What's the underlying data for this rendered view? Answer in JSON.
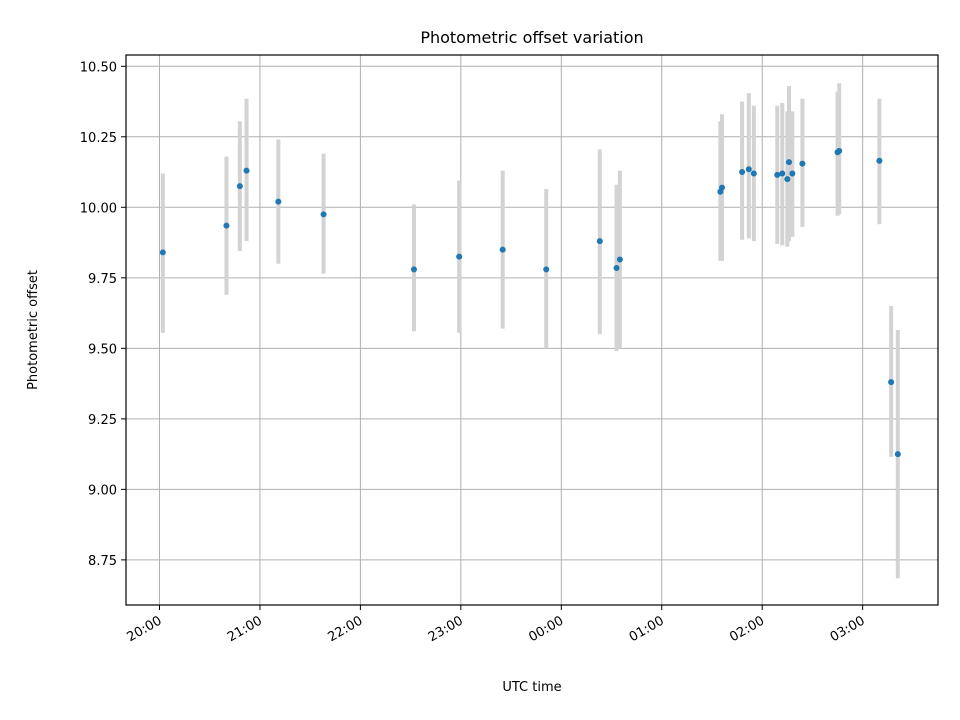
{
  "chart_data": {
    "type": "scatter",
    "title": "Photometric offset variation",
    "xlabel": "UTC time",
    "ylabel": "Photometric offset",
    "x_unit": "UTC time (HH:MM)",
    "x_start_date": "day 1 20:00",
    "xlim": [
      "19:40",
      "03:45"
    ],
    "ylim": [
      8.59,
      10.54
    ],
    "grid": true,
    "x_ticks": [
      "20:00",
      "21:00",
      "22:00",
      "23:00",
      "00:00",
      "01:00",
      "02:00",
      "03:00"
    ],
    "y_ticks": [
      "8.75",
      "9.00",
      "9.25",
      "9.50",
      "9.75",
      "10.00",
      "10.25",
      "10.50"
    ],
    "y_tick_values": [
      8.75,
      9.0,
      9.25,
      9.5,
      9.75,
      10.0,
      10.25,
      10.5
    ],
    "colors": {
      "point": "#1f77b4",
      "errorbar": "#d3d3d3",
      "grid": "#b0b0b0"
    },
    "points": [
      {
        "x": "20:02",
        "y": 9.84,
        "lo": 9.555,
        "hi": 10.12
      },
      {
        "x": "20:40",
        "y": 9.935,
        "lo": 9.69,
        "hi": 10.18
      },
      {
        "x": "20:48",
        "y": 10.075,
        "lo": 9.845,
        "hi": 10.305
      },
      {
        "x": "20:52",
        "y": 10.13,
        "lo": 9.88,
        "hi": 10.385
      },
      {
        "x": "21:11",
        "y": 10.02,
        "lo": 9.8,
        "hi": 10.24
      },
      {
        "x": "21:38",
        "y": 9.975,
        "lo": 9.765,
        "hi": 10.19
      },
      {
        "x": "22:32",
        "y": 9.78,
        "lo": 9.56,
        "hi": 10.01
      },
      {
        "x": "22:59",
        "y": 9.825,
        "lo": 9.555,
        "hi": 10.095
      },
      {
        "x": "23:25",
        "y": 9.85,
        "lo": 9.57,
        "hi": 10.13
      },
      {
        "x": "23:51",
        "y": 9.78,
        "lo": 9.5,
        "hi": 10.065
      },
      {
        "x": "00:23",
        "y": 9.88,
        "lo": 9.55,
        "hi": 10.205
      },
      {
        "x": "00:33",
        "y": 9.785,
        "lo": 9.49,
        "hi": 10.08
      },
      {
        "x": "00:35",
        "y": 9.815,
        "lo": 9.5,
        "hi": 10.13
      },
      {
        "x": "01:35",
        "y": 10.055,
        "lo": 9.81,
        "hi": 10.305
      },
      {
        "x": "01:36",
        "y": 10.07,
        "lo": 9.81,
        "hi": 10.33
      },
      {
        "x": "01:48",
        "y": 10.125,
        "lo": 9.885,
        "hi": 10.375
      },
      {
        "x": "01:52",
        "y": 10.135,
        "lo": 9.89,
        "hi": 10.405
      },
      {
        "x": "01:55",
        "y": 10.12,
        "lo": 9.88,
        "hi": 10.36
      },
      {
        "x": "02:09",
        "y": 10.115,
        "lo": 9.87,
        "hi": 10.36
      },
      {
        "x": "02:12",
        "y": 10.12,
        "lo": 9.865,
        "hi": 10.37
      },
      {
        "x": "02:15",
        "y": 10.1,
        "lo": 9.86,
        "hi": 10.34
      },
      {
        "x": "02:16",
        "y": 10.16,
        "lo": 9.88,
        "hi": 10.43
      },
      {
        "x": "02:18",
        "y": 10.12,
        "lo": 9.895,
        "hi": 10.34
      },
      {
        "x": "02:24",
        "y": 10.155,
        "lo": 9.93,
        "hi": 10.385
      },
      {
        "x": "02:45",
        "y": 10.195,
        "lo": 9.97,
        "hi": 10.41
      },
      {
        "x": "02:46",
        "y": 10.2,
        "lo": 9.975,
        "hi": 10.44
      },
      {
        "x": "03:10",
        "y": 10.165,
        "lo": 9.94,
        "hi": 10.385
      },
      {
        "x": "03:17",
        "y": 9.38,
        "lo": 9.115,
        "hi": 9.65
      },
      {
        "x": "03:21",
        "y": 9.125,
        "lo": 8.685,
        "hi": 9.565
      }
    ]
  }
}
